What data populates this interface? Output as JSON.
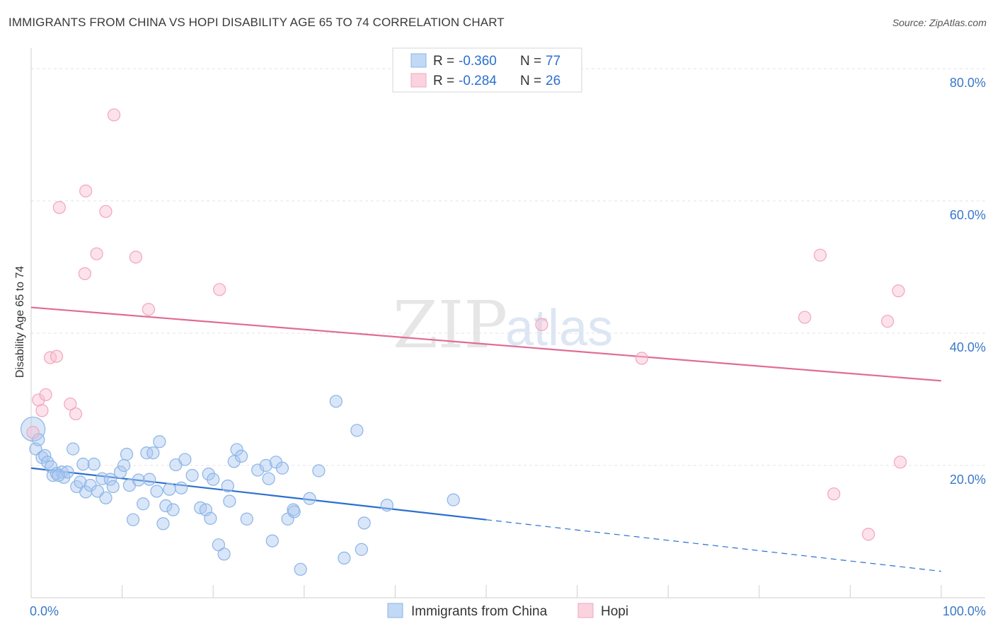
{
  "title": "IMMIGRANTS FROM CHINA VS HOPI DISABILITY AGE 65 TO 74 CORRELATION CHART",
  "source": "Source: ZipAtlas.com",
  "watermark": {
    "zip": "ZIP",
    "atlas": "atlas"
  },
  "chart_data": {
    "type": "scatter",
    "title": "IMMIGRANTS FROM CHINA VS HOPI DISABILITY AGE 65 TO 74 CORRELATION CHART",
    "xlabel": "",
    "ylabel": "Disability Age 65 to 74",
    "xlim": [
      0,
      100
    ],
    "ylim": [
      0,
      80
    ],
    "x_tick_labels": {
      "left": "0.0%",
      "right": "100.0%"
    },
    "y_ticks": [
      {
        "value": 20,
        "label": "20.0%"
      },
      {
        "value": 40,
        "label": "40.0%"
      },
      {
        "value": 60,
        "label": "60.0%"
      },
      {
        "value": 80,
        "label": "80.0%"
      }
    ],
    "grid": true,
    "legend_position": "top-center",
    "series": [
      {
        "name": "Immigrants from China",
        "color": "#8ab4e8",
        "line_color": "#2b6fcf",
        "stats": {
          "r_label": "R = ",
          "r_value": "-0.360",
          "n_label": "N = ",
          "n_value": "77"
        },
        "trend": {
          "x0": 0,
          "y0": 19.6,
          "x1": 50,
          "y1": 11.8,
          "dash_to_x": 100,
          "dash_to_y": 4.0
        },
        "points": [
          [
            0.2,
            25.5
          ],
          [
            0.5,
            22.5
          ],
          [
            1.2,
            21.2
          ],
          [
            1.5,
            21.5
          ],
          [
            1.8,
            20.5
          ],
          [
            2.2,
            19.8
          ],
          [
            2.4,
            18.5
          ],
          [
            2.8,
            18.8
          ],
          [
            3.4,
            19.0
          ],
          [
            3.6,
            18.2
          ],
          [
            4.0,
            19.0
          ],
          [
            4.6,
            22.5
          ],
          [
            5.0,
            16.8
          ],
          [
            5.4,
            17.5
          ],
          [
            5.7,
            20.2
          ],
          [
            6.0,
            16.0
          ],
          [
            6.5,
            17.0
          ],
          [
            6.9,
            20.2
          ],
          [
            7.3,
            16.1
          ],
          [
            7.8,
            18.0
          ],
          [
            8.2,
            15.1
          ],
          [
            8.7,
            17.9
          ],
          [
            9.0,
            16.8
          ],
          [
            9.8,
            19.0
          ],
          [
            10.2,
            20.0
          ],
          [
            10.5,
            21.7
          ],
          [
            10.8,
            17.0
          ],
          [
            11.2,
            11.8
          ],
          [
            11.8,
            17.8
          ],
          [
            12.3,
            14.2
          ],
          [
            12.7,
            21.9
          ],
          [
            13.0,
            17.9
          ],
          [
            13.4,
            21.9
          ],
          [
            13.8,
            16.1
          ],
          [
            14.1,
            23.6
          ],
          [
            14.5,
            11.2
          ],
          [
            14.8,
            13.9
          ],
          [
            15.2,
            16.4
          ],
          [
            15.6,
            13.3
          ],
          [
            15.9,
            20.1
          ],
          [
            16.5,
            16.6
          ],
          [
            16.9,
            20.9
          ],
          [
            17.7,
            18.5
          ],
          [
            18.6,
            13.6
          ],
          [
            19.2,
            13.3
          ],
          [
            19.5,
            18.7
          ],
          [
            19.7,
            12.0
          ],
          [
            20.0,
            17.9
          ],
          [
            20.6,
            8.0
          ],
          [
            21.2,
            6.6
          ],
          [
            21.6,
            16.9
          ],
          [
            21.8,
            14.6
          ],
          [
            22.3,
            20.6
          ],
          [
            22.6,
            22.4
          ],
          [
            23.1,
            21.4
          ],
          [
            23.7,
            11.9
          ],
          [
            24.9,
            19.3
          ],
          [
            25.8,
            20.0
          ],
          [
            26.1,
            18.0
          ],
          [
            26.5,
            8.6
          ],
          [
            26.9,
            20.5
          ],
          [
            27.6,
            19.6
          ],
          [
            28.2,
            11.9
          ],
          [
            28.8,
            13.3
          ],
          [
            28.9,
            13.0
          ],
          [
            29.6,
            4.3
          ],
          [
            30.6,
            15.0
          ],
          [
            31.6,
            19.2
          ],
          [
            33.5,
            29.7
          ],
          [
            34.4,
            6.0
          ],
          [
            35.8,
            25.3
          ],
          [
            36.3,
            7.3
          ],
          [
            36.6,
            11.3
          ],
          [
            39.1,
            14.0
          ],
          [
            46.4,
            14.8
          ],
          [
            0.8,
            23.9
          ],
          [
            3.0,
            18.5
          ]
        ]
      },
      {
        "name": "Hopi",
        "color": "#f2a5bd",
        "line_color": "#e06b93",
        "stats": {
          "r_label": "R = ",
          "r_value": "-0.284",
          "n_label": "N = ",
          "n_value": "26"
        },
        "trend": {
          "x0": 0,
          "y0": 43.9,
          "x1": 100,
          "y1": 32.8
        },
        "points": [
          [
            0.2,
            25.0
          ],
          [
            0.8,
            29.9
          ],
          [
            1.2,
            28.3
          ],
          [
            1.6,
            30.7
          ],
          [
            2.1,
            36.3
          ],
          [
            2.8,
            36.5
          ],
          [
            3.1,
            59.0
          ],
          [
            4.3,
            29.3
          ],
          [
            4.9,
            27.8
          ],
          [
            5.9,
            49.0
          ],
          [
            6.0,
            61.5
          ],
          [
            7.2,
            52.0
          ],
          [
            8.2,
            58.4
          ],
          [
            9.1,
            73.0
          ],
          [
            11.5,
            51.5
          ],
          [
            12.9,
            43.6
          ],
          [
            20.7,
            46.6
          ],
          [
            56.1,
            41.3
          ],
          [
            67.1,
            36.2
          ],
          [
            85.0,
            42.4
          ],
          [
            86.7,
            51.8
          ],
          [
            88.2,
            15.7
          ],
          [
            92.0,
            9.6
          ],
          [
            94.1,
            41.8
          ],
          [
            95.3,
            46.4
          ],
          [
            95.5,
            20.5
          ]
        ]
      }
    ]
  }
}
